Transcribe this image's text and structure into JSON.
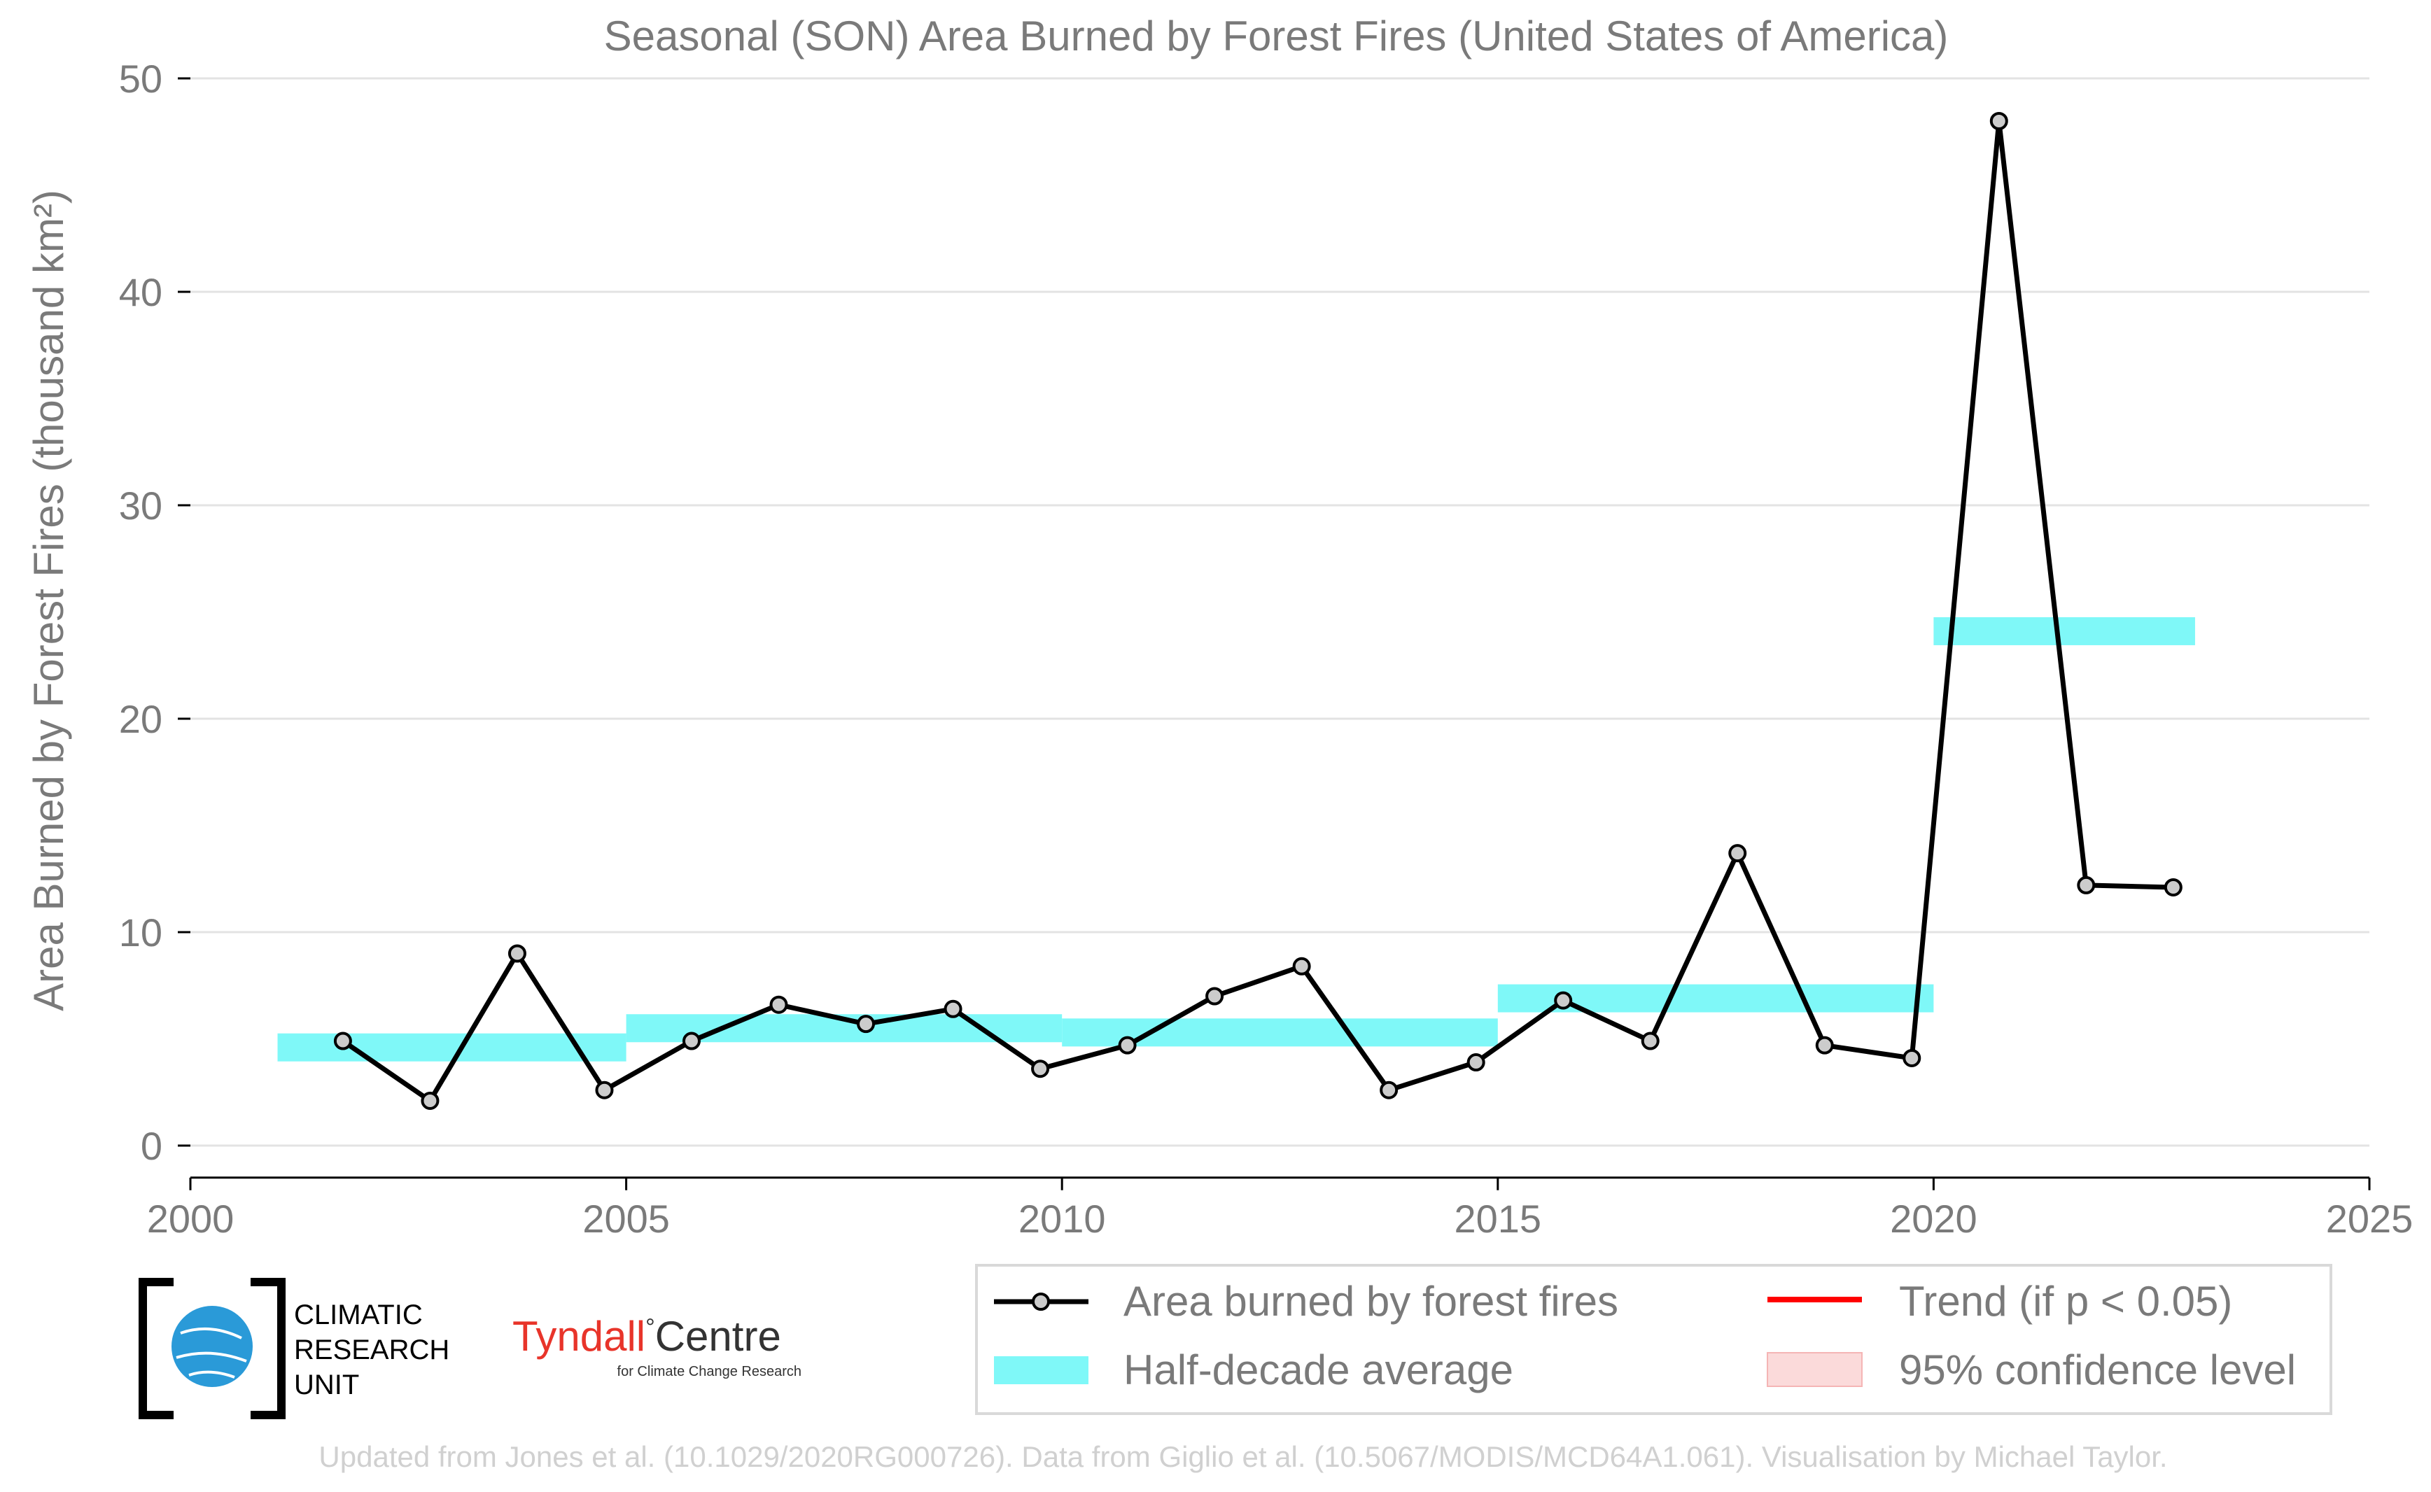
{
  "chart_data": {
    "type": "line",
    "title": "Seasonal (SON) Area Burned by Forest Fires (United States of America)",
    "ylabel": "Area Burned by Forest Fires (thousand km²)",
    "xlabel": "",
    "xlim": [
      2000,
      2025
    ],
    "ylim": [
      -1.5,
      50
    ],
    "xticks": [
      2000,
      2005,
      2010,
      2015,
      2020,
      2025
    ],
    "yticks": [
      0,
      10,
      20,
      30,
      40,
      50
    ],
    "grid": "horizontal",
    "series": [
      {
        "name": "Area burned by forest fires",
        "x": [
          2001.75,
          2002.75,
          2003.75,
          2004.75,
          2005.75,
          2006.75,
          2007.75,
          2008.75,
          2009.75,
          2010.75,
          2011.75,
          2012.75,
          2013.75,
          2014.75,
          2015.75,
          2016.75,
          2017.75,
          2018.75,
          2019.75,
          2020.75,
          2021.75,
          2022.75
        ],
        "y": [
          4.9,
          2.1,
          9.0,
          2.6,
          4.9,
          6.6,
          5.7,
          6.4,
          3.6,
          4.7,
          7.0,
          8.4,
          2.6,
          3.9,
          6.8,
          4.9,
          13.7,
          4.7,
          4.1,
          48.0,
          12.2,
          12.1
        ],
        "color": "#000000",
        "marker_fill": "#cccccc"
      },
      {
        "name": "Half-decade average",
        "segments": [
          {
            "x": [
              2001,
              2005
            ],
            "y": 4.6
          },
          {
            "x": [
              2005,
              2010
            ],
            "y": 5.5
          },
          {
            "x": [
              2010,
              2015
            ],
            "y": 5.3
          },
          {
            "x": [
              2015,
              2020
            ],
            "y": 6.9
          },
          {
            "x": [
              2020,
              2023
            ],
            "y": 24.1
          }
        ],
        "color": "#7ff8f8"
      }
    ],
    "legend": {
      "placement": "bottom-right",
      "entries": [
        {
          "label": "Area burned by forest fires",
          "kind": "line-marker",
          "color": "#000000"
        },
        {
          "label": "Trend (if p < 0.05)",
          "kind": "line",
          "color": "#ff0000"
        },
        {
          "label": "Half-decade average",
          "kind": "band",
          "color": "#7ff8f8"
        },
        {
          "label": "95% confidence level",
          "kind": "patch",
          "color": "#fbdada"
        }
      ]
    }
  },
  "logos": {
    "cru": [
      "CLIMATIC",
      "RESEARCH",
      "UNIT"
    ],
    "tyndall_main": "Tyndall",
    "tyndall_deg": "°",
    "tyndall_centre": "Centre",
    "tyndall_sub": "for Climate Change Research"
  },
  "footer": "Updated from Jones et al. (10.1029/2020RG000726). Data from Giglio et al. (10.5067/MODIS/MCD64A1.061). Visualisation by Michael Taylor.",
  "colors": {
    "line": "#000000",
    "marker_fill": "#cccccc",
    "band": "#7ff8f8",
    "trend": "#ff0000",
    "confidence": "#fbdada",
    "text": "#7a7a7a"
  }
}
